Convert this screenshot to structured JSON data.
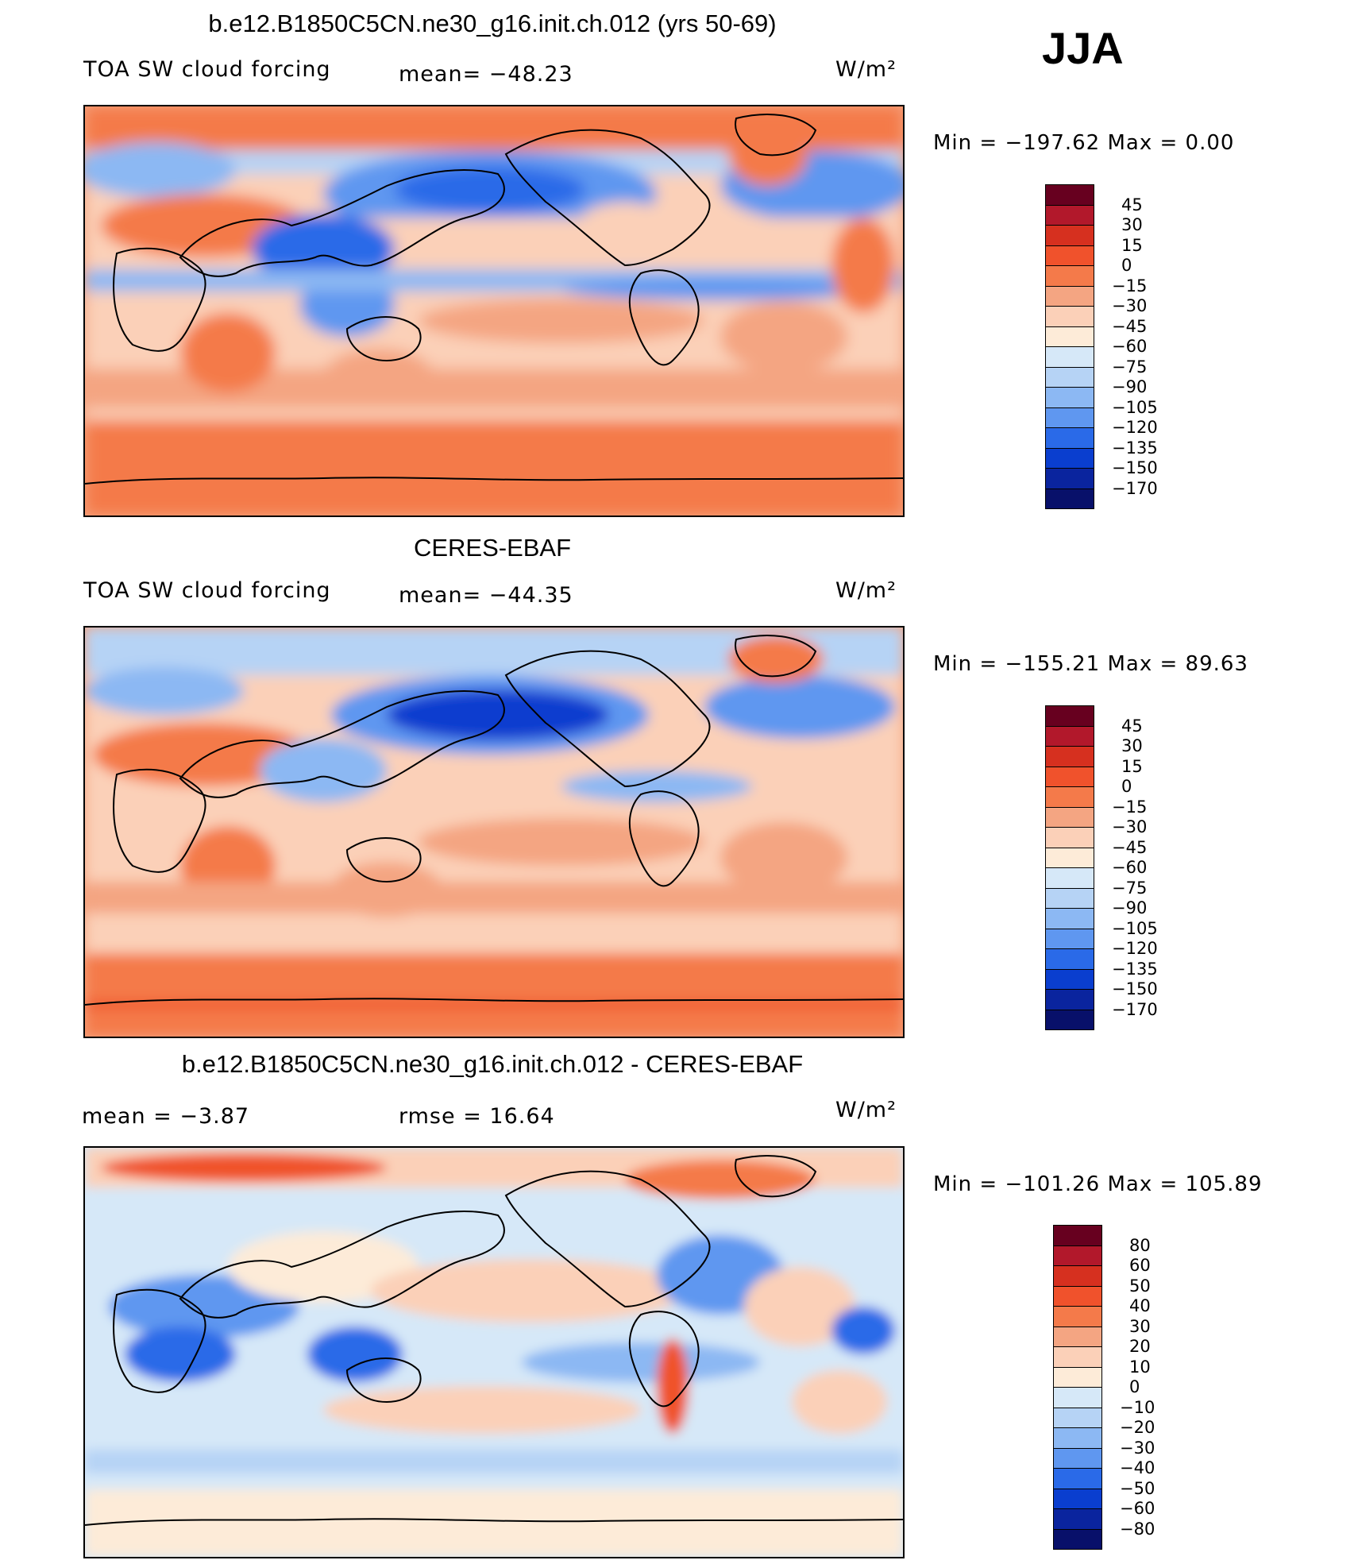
{
  "season": "JJA",
  "panels": [
    {
      "title": "b.e12.B1850C5CN.ne30_g16.init.ch.012 (yrs 50-69)",
      "left_text": "TOA SW cloud forcing",
      "mid_text": "mean= −48.23",
      "units": "W/m²",
      "minmax": "Min = −197.62 Max =    0.00",
      "colorbar": {
        "labels": [
          "45",
          "30",
          "15",
          "0",
          "−15",
          "−30",
          "−45",
          "−60",
          "−75",
          "−90",
          "−105",
          "−120",
          "−135",
          "−150",
          "−170"
        ],
        "colors": [
          "#67001f",
          "#b2182b",
          "#d6301f",
          "#f0522c",
          "#f47a4a",
          "#f4a582",
          "#fbd0b8",
          "#fdebd8",
          "#d6e8f8",
          "#b6d3f5",
          "#8cb8f3",
          "#5f97f0",
          "#2a6ae8",
          "#0a3ecf",
          "#0a249e",
          "#08106a"
        ]
      }
    },
    {
      "title": "CERES-EBAF",
      "left_text": "TOA SW cloud forcing",
      "mid_text": "mean= −44.35",
      "units": "W/m²",
      "minmax": "Min = −155.21 Max =   89.63",
      "colorbar": {
        "labels": [
          "45",
          "30",
          "15",
          "0",
          "−15",
          "−30",
          "−45",
          "−60",
          "−75",
          "−90",
          "−105",
          "−120",
          "−135",
          "−150",
          "−170"
        ],
        "colors": [
          "#67001f",
          "#b2182b",
          "#d6301f",
          "#f0522c",
          "#f47a4a",
          "#f4a582",
          "#fbd0b8",
          "#fdebd8",
          "#d6e8f8",
          "#b6d3f5",
          "#8cb8f3",
          "#5f97f0",
          "#2a6ae8",
          "#0a3ecf",
          "#0a249e",
          "#08106a"
        ]
      }
    },
    {
      "title": "b.e12.B1850C5CN.ne30_g16.init.ch.012 - CERES-EBAF",
      "left_text": "mean =   −3.87",
      "mid_text": "rmse =   16.64",
      "units": "W/m²",
      "minmax": "Min = −101.26 Max = 105.89",
      "colorbar": {
        "labels": [
          "80",
          "60",
          "50",
          "40",
          "30",
          "20",
          "10",
          "0",
          "−10",
          "−20",
          "−30",
          "−40",
          "−50",
          "−60",
          "−80"
        ],
        "colors": [
          "#67001f",
          "#b2182b",
          "#d6301f",
          "#f0522c",
          "#f47a4a",
          "#f4a582",
          "#fbd0b8",
          "#fdebd8",
          "#d6e8f8",
          "#b6d3f5",
          "#8cb8f3",
          "#5f97f0",
          "#2a6ae8",
          "#0a3ecf",
          "#0a249e",
          "#08106a"
        ]
      }
    }
  ],
  "chart_data": [
    {
      "type": "heatmap",
      "title": "b.e12.B1850C5CN.ne30_g16.init.ch.012 (yrs 50-69)",
      "variable": "TOA SW cloud forcing",
      "units": "W/m²",
      "mean": -48.23,
      "min": -197.62,
      "max": 0.0,
      "contour_levels": [
        -170,
        -150,
        -135,
        -120,
        -105,
        -90,
        -75,
        -60,
        -45,
        -30,
        -15,
        0,
        15,
        30,
        45
      ]
    },
    {
      "type": "heatmap",
      "title": "CERES-EBAF",
      "variable": "TOA SW cloud forcing",
      "units": "W/m²",
      "mean": -44.35,
      "min": -155.21,
      "max": 89.63,
      "contour_levels": [
        -170,
        -150,
        -135,
        -120,
        -105,
        -90,
        -75,
        -60,
        -45,
        -30,
        -15,
        0,
        15,
        30,
        45
      ]
    },
    {
      "type": "heatmap",
      "title": "b.e12.B1850C5CN.ne30_g16.init.ch.012 - CERES-EBAF",
      "units": "W/m²",
      "mean": -3.87,
      "rmse": 16.64,
      "min": -101.26,
      "max": 105.89,
      "contour_levels": [
        -80,
        -60,
        -50,
        -40,
        -30,
        -20,
        -10,
        0,
        10,
        20,
        30,
        40,
        50,
        60,
        80
      ]
    }
  ]
}
